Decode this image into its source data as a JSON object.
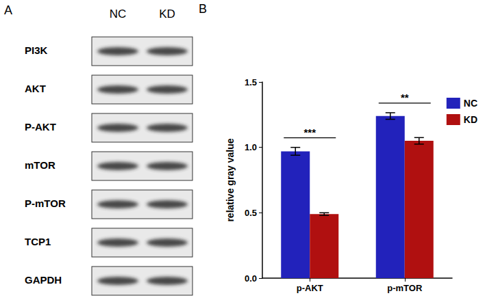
{
  "figure": {
    "panel_labels": [
      "A",
      "B"
    ]
  },
  "blot": {
    "columns": [
      "NC",
      "KD"
    ],
    "rows": [
      "PI3K",
      "AKT",
      "P-AKT",
      "mTOR",
      "P-mTOR",
      "TCP1",
      "GAPDH"
    ]
  },
  "chart_data": {
    "type": "bar",
    "categories": [
      "p-AKT",
      "p-mTOR"
    ],
    "series": [
      {
        "name": "NC",
        "color": "#2222bb",
        "values": [
          0.97,
          1.24
        ],
        "errors": [
          0.03,
          0.025
        ]
      },
      {
        "name": "KD",
        "color": "#b01010",
        "values": [
          0.49,
          1.05
        ],
        "errors": [
          0.01,
          0.025
        ]
      }
    ],
    "y_label": "relative gray value",
    "ylim": [
      0,
      1.5
    ],
    "yticks": [
      {
        "value": 0,
        "label": "0.0"
      },
      {
        "value": 0.5,
        "label": "0.5"
      },
      {
        "value": 1,
        "label": "1.0"
      },
      {
        "value": 1.5,
        "label": "1.5"
      }
    ],
    "annotations": [
      {
        "category": "p-AKT",
        "label": "***"
      },
      {
        "category": "p-mTOR",
        "label": "**"
      }
    ],
    "grid": false,
    "legend": "upper right"
  }
}
